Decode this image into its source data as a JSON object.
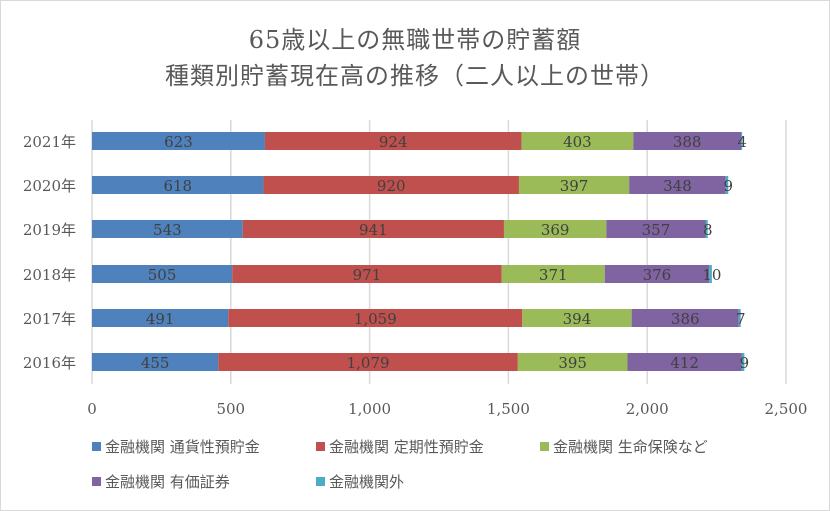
{
  "chart_data": {
    "type": "bar",
    "orientation": "horizontal",
    "stacked": true,
    "title": [
      "65歳以上の無職世帯の貯蓄額",
      "種類別貯蓄現在高の推移（二人以上の世帯）"
    ],
    "categories": [
      "2021年",
      "2020年",
      "2019年",
      "2018年",
      "2017年",
      "2016年"
    ],
    "series": [
      {
        "name": "金融機関 通貨性預貯金",
        "color": "#4f81bd",
        "values": [
          623,
          618,
          543,
          505,
          491,
          455
        ]
      },
      {
        "name": "金融機関 定期性預貯金",
        "color": "#c0504d",
        "values": [
          924,
          920,
          941,
          971,
          1059,
          1079
        ]
      },
      {
        "name": "金融機関 生命保険など",
        "color": "#9bbb59",
        "values": [
          403,
          397,
          369,
          371,
          394,
          395
        ]
      },
      {
        "name": "金融機関 有価証券",
        "color": "#8064a2",
        "values": [
          388,
          348,
          357,
          376,
          386,
          412
        ]
      },
      {
        "name": "金融機関外",
        "color": "#4bacc6",
        "values": [
          4,
          9,
          8,
          10,
          7,
          9
        ]
      }
    ],
    "xlim": [
      0,
      2500
    ],
    "xticks": [
      "0",
      "500",
      "1,000",
      "1,500",
      "2,000",
      "2,500"
    ],
    "xlabel": "",
    "ylabel": "",
    "grid": "vertical",
    "legend": "bottom"
  }
}
